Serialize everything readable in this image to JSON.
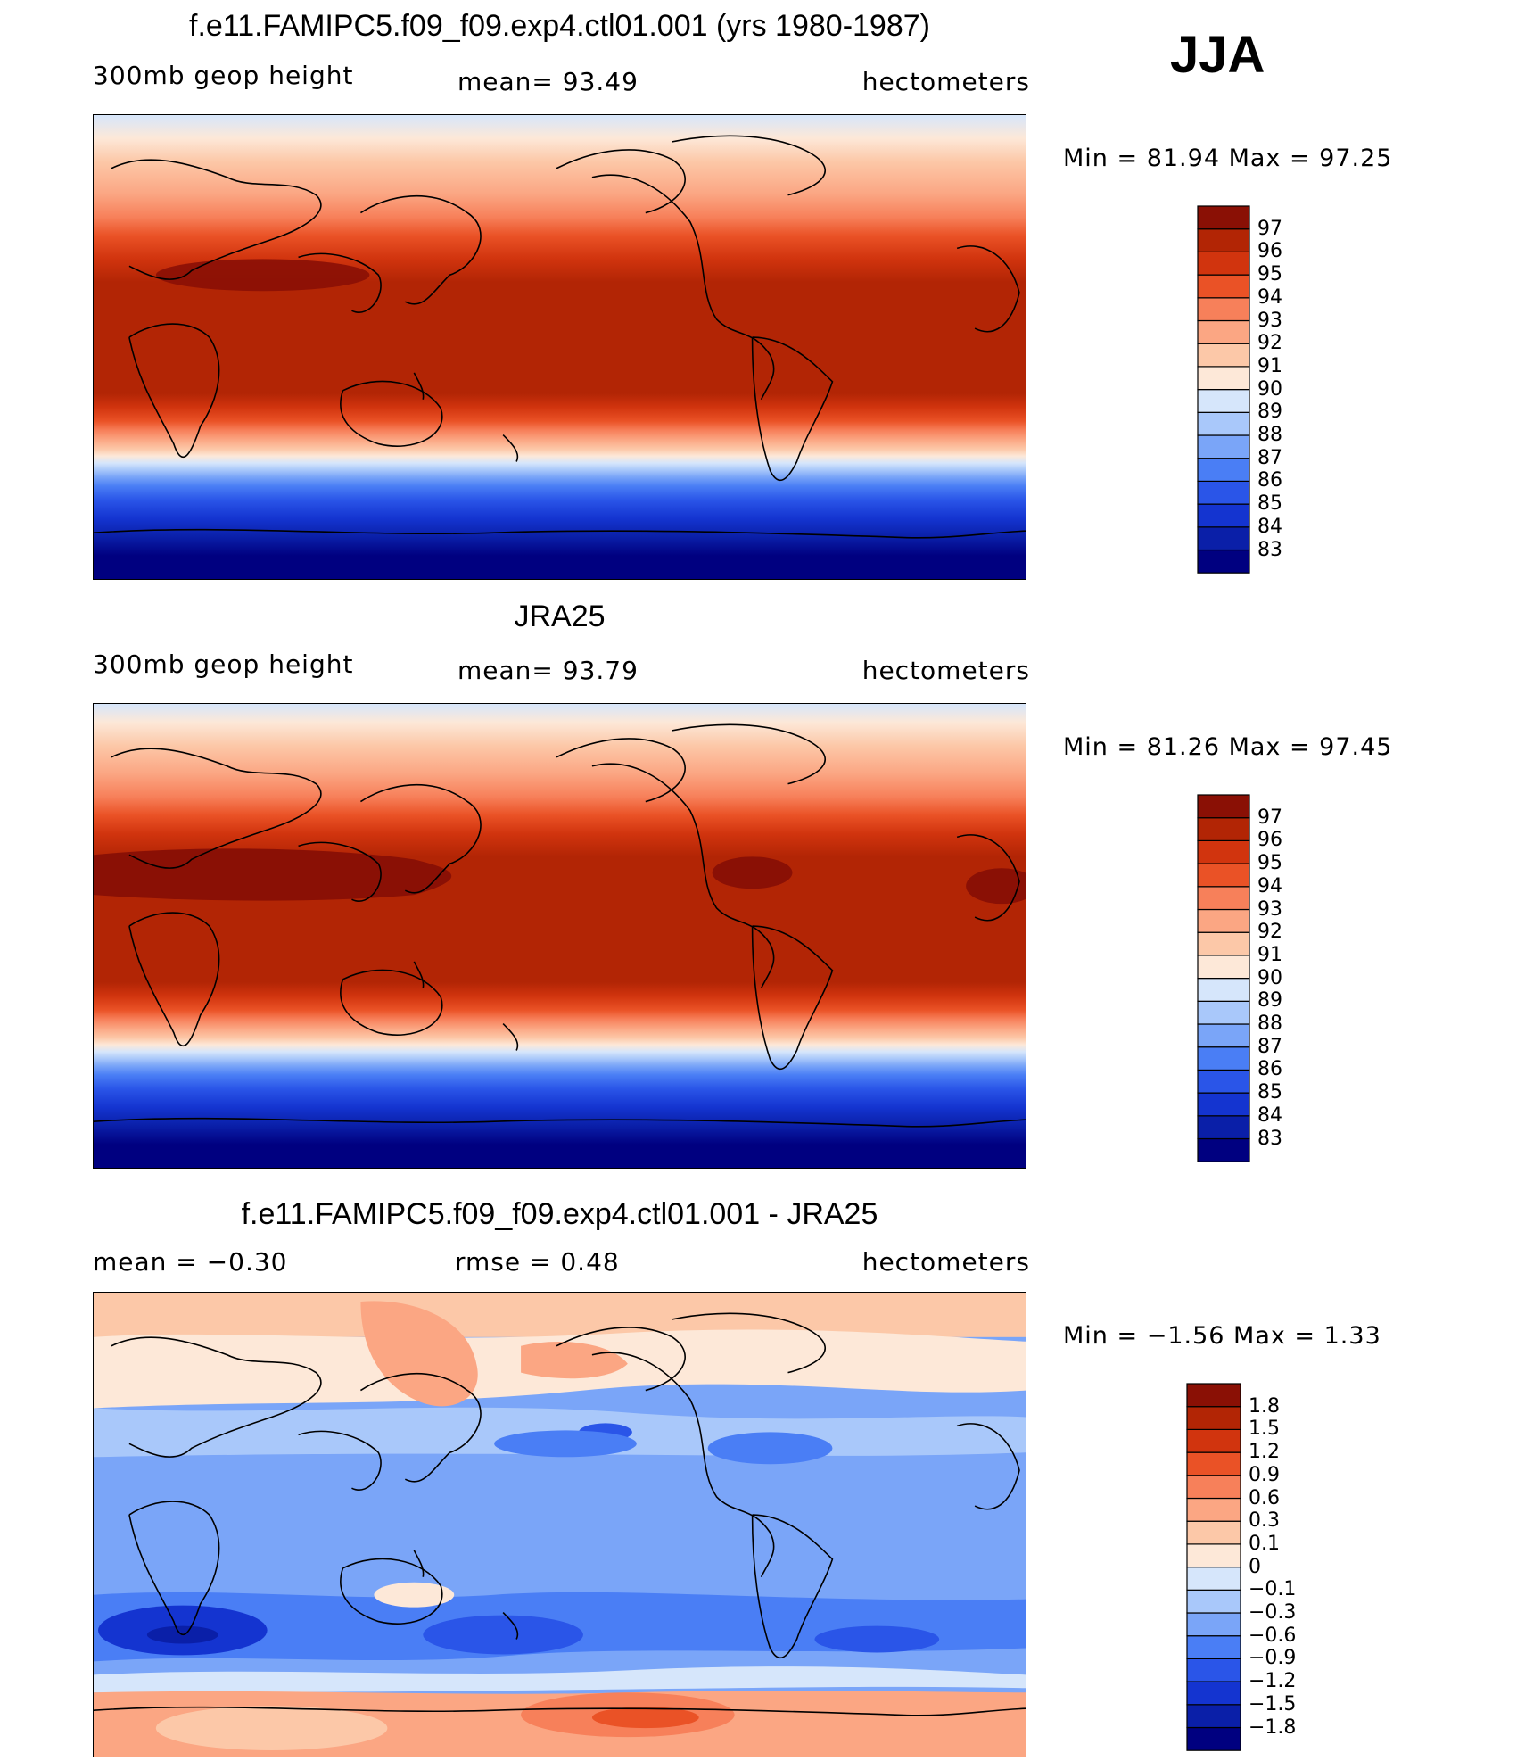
{
  "season": "JJA",
  "panels": [
    {
      "id": "model",
      "title": "f.e11.FAMIPC5.f09_f09.exp4.ctl01.001 (yrs 1980-1987)",
      "left_label": "300mb  geop  height",
      "center_label": "mean=   93.49",
      "right_label": "hectometers",
      "minmax": "Min  =    81.94  Max  =    97.25",
      "levels": [
        "83",
        "84",
        "85",
        "86",
        "87",
        "88",
        "89",
        "90",
        "91",
        "92",
        "93",
        "94",
        "95",
        "96",
        "97"
      ],
      "colors": [
        "#000080",
        "#0a1fa8",
        "#1434d0",
        "#2a55e8",
        "#4a7ef5",
        "#7aa5f8",
        "#a9c8fa",
        "#d6e6fb",
        "#fde8d8",
        "#fcc8a8",
        "#fba683",
        "#f7805a",
        "#ea5226",
        "#d1340e",
        "#b22505",
        "#8a1005"
      ]
    },
    {
      "id": "obs",
      "title": "JRA25",
      "left_label": "300mb  geop  height",
      "center_label": "mean=   93.79",
      "right_label": "hectometers",
      "minmax": "Min  =    81.26  Max  =    97.45",
      "levels": [
        "83",
        "84",
        "85",
        "86",
        "87",
        "88",
        "89",
        "90",
        "91",
        "92",
        "93",
        "94",
        "95",
        "96",
        "97"
      ],
      "colors": [
        "#000080",
        "#0a1fa8",
        "#1434d0",
        "#2a55e8",
        "#4a7ef5",
        "#7aa5f8",
        "#a9c8fa",
        "#d6e6fb",
        "#fde8d8",
        "#fcc8a8",
        "#fba683",
        "#f7805a",
        "#ea5226",
        "#d1340e",
        "#b22505",
        "#8a1005"
      ]
    },
    {
      "id": "diff",
      "title": "f.e11.FAMIPC5.f09_f09.exp4.ctl01.001 - JRA25",
      "left_label": "mean  =    −0.30",
      "center_label": "rmse  =     0.48",
      "right_label": "hectometers",
      "minmax": "Min  =    −1.56  Max  =     1.33",
      "levels": [
        "−1.8",
        "−1.5",
        "−1.2",
        "−0.9",
        "−0.6",
        "−0.3",
        "−0.1",
        "0",
        "0.1",
        "0.3",
        "0.6",
        "0.9",
        "1.2",
        "1.5",
        "1.8"
      ],
      "colors": [
        "#000080",
        "#0a1fa8",
        "#1434d0",
        "#2a55e8",
        "#4a7ef5",
        "#7aa5f8",
        "#a9c8fa",
        "#d6e6fb",
        "#fde8d8",
        "#fcc8a8",
        "#fba683",
        "#f7805a",
        "#ea5226",
        "#d1340e",
        "#b22505",
        "#8a1005"
      ]
    }
  ]
}
